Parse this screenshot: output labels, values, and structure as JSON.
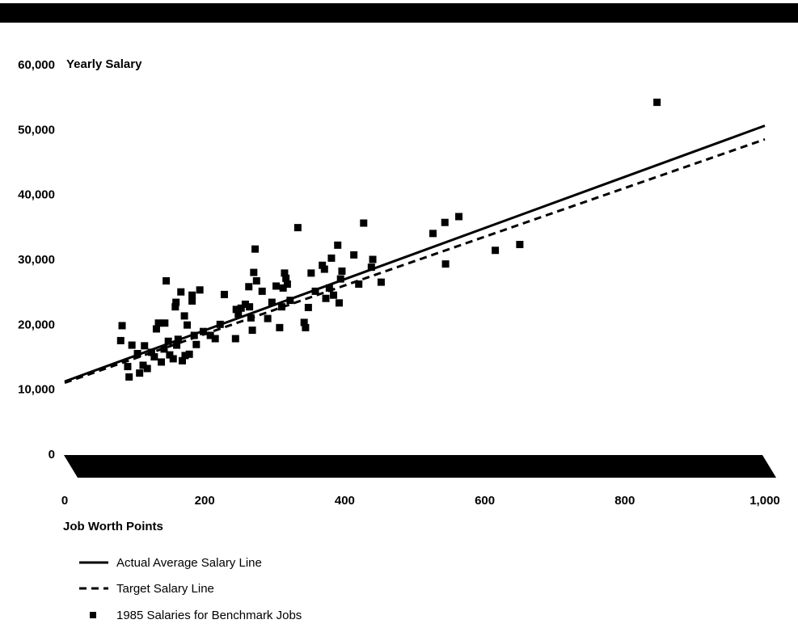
{
  "chart_data": {
    "type": "scatter",
    "title": "",
    "ylabel": "Yearly Salary",
    "xlabel": "Job Worth Points",
    "xlim": [
      0,
      1000
    ],
    "ylim": [
      0,
      60000
    ],
    "x_ticks": [
      0,
      200,
      400,
      600,
      800,
      1000
    ],
    "x_tick_labels": [
      "0",
      "200",
      "400",
      "600",
      "800",
      "1,000"
    ],
    "y_ticks": [
      0,
      10000,
      20000,
      30000,
      40000,
      50000,
      60000
    ],
    "y_tick_labels": [
      "0",
      "10,000",
      "20,000",
      "30,000",
      "40,000",
      "50,000",
      "60,000"
    ],
    "grid": false,
    "legend_position": "bottom-left",
    "series": [
      {
        "name": "Actual Average Salary Line",
        "kind": "line",
        "style": "solid",
        "x": [
          0,
          1000
        ],
        "y": [
          11200,
          50600
        ]
      },
      {
        "name": "Target Salary Line",
        "kind": "line",
        "style": "dashed",
        "x": [
          0,
          1000
        ],
        "y": [
          11000,
          48500
        ]
      },
      {
        "name": "1985 Salaries for Benchmark Jobs",
        "kind": "scatter",
        "points": [
          [
            80,
            17500
          ],
          [
            82,
            19800
          ],
          [
            90,
            13500
          ],
          [
            92,
            11900
          ],
          [
            96,
            16800
          ],
          [
            104,
            15500
          ],
          [
            107,
            12500
          ],
          [
            112,
            13700
          ],
          [
            114,
            16700
          ],
          [
            118,
            13200
          ],
          [
            124,
            15700
          ],
          [
            128,
            15000
          ],
          [
            131,
            19300
          ],
          [
            134,
            20200
          ],
          [
            138,
            14200
          ],
          [
            142,
            16200
          ],
          [
            143,
            20200
          ],
          [
            145,
            26700
          ],
          [
            148,
            17400
          ],
          [
            150,
            15300
          ],
          [
            155,
            14700
          ],
          [
            158,
            22700
          ],
          [
            159,
            23400
          ],
          [
            160,
            16800
          ],
          [
            162,
            17700
          ],
          [
            166,
            25000
          ],
          [
            168,
            14400
          ],
          [
            171,
            21300
          ],
          [
            172,
            15200
          ],
          [
            175,
            19900
          ],
          [
            178,
            15400
          ],
          [
            182,
            24500
          ],
          [
            182,
            23600
          ],
          [
            185,
            18300
          ],
          [
            188,
            16900
          ],
          [
            193,
            25300
          ],
          [
            198,
            18900
          ],
          [
            208,
            18300
          ],
          [
            215,
            17800
          ],
          [
            222,
            20000
          ],
          [
            228,
            24600
          ],
          [
            244,
            17800
          ],
          [
            245,
            22300
          ],
          [
            248,
            21600
          ],
          [
            252,
            22500
          ],
          [
            258,
            23100
          ],
          [
            263,
            25800
          ],
          [
            264,
            22700
          ],
          [
            266,
            21000
          ],
          [
            268,
            19100
          ],
          [
            270,
            28000
          ],
          [
            272,
            31600
          ],
          [
            274,
            26700
          ],
          [
            282,
            25100
          ],
          [
            290,
            20900
          ],
          [
            296,
            23400
          ],
          [
            302,
            25900
          ],
          [
            307,
            19500
          ],
          [
            310,
            22700
          ],
          [
            312,
            25600
          ],
          [
            314,
            27900
          ],
          [
            316,
            27100
          ],
          [
            318,
            26200
          ],
          [
            322,
            23700
          ],
          [
            333,
            34900
          ],
          [
            342,
            20300
          ],
          [
            344,
            19500
          ],
          [
            348,
            22600
          ],
          [
            352,
            27900
          ],
          [
            358,
            25100
          ],
          [
            368,
            29100
          ],
          [
            371,
            28500
          ],
          [
            373,
            24000
          ],
          [
            378,
            25600
          ],
          [
            381,
            30200
          ],
          [
            384,
            24500
          ],
          [
            390,
            32200
          ],
          [
            392,
            23300
          ],
          [
            394,
            27000
          ],
          [
            396,
            28200
          ],
          [
            413,
            30700
          ],
          [
            420,
            26200
          ],
          [
            427,
            35600
          ],
          [
            438,
            28800
          ],
          [
            440,
            30000
          ],
          [
            452,
            26500
          ],
          [
            526,
            34000
          ],
          [
            543,
            35700
          ],
          [
            544,
            29300
          ],
          [
            563,
            36600
          ],
          [
            615,
            31400
          ],
          [
            650,
            32300
          ],
          [
            846,
            54200
          ]
        ]
      }
    ]
  }
}
